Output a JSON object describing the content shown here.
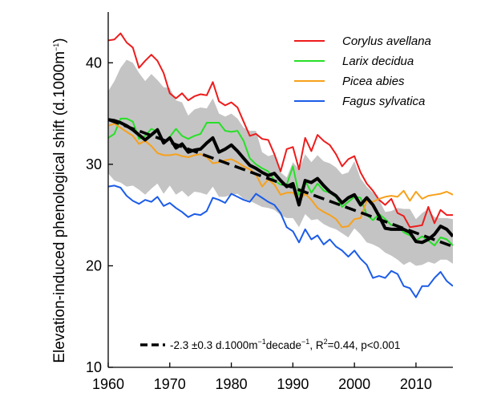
{
  "chart_data": {
    "type": "line",
    "ylabel_main": "Elevation-induced phenological shift (d.1000m",
    "ylabel_sup": "−1",
    "ylabel_close": ")",
    "xlim": [
      1960,
      2016
    ],
    "ylim": [
      10,
      45
    ],
    "xticks": [
      "1960",
      "1970",
      "1980",
      "1990",
      "2000",
      "2010"
    ],
    "yticks": [
      "10",
      "20",
      "30",
      "40"
    ],
    "legend_position": "top-right",
    "colors": {
      "corylus": "#ee1c1c",
      "larix": "#27e027",
      "picea": "#f7a11b",
      "fagus": "#1c5ce8",
      "mean": "#000000",
      "band": "#c4c4c4"
    },
    "x": [
      1960,
      1961,
      1962,
      1963,
      1964,
      1965,
      1966,
      1967,
      1968,
      1969,
      1970,
      1971,
      1972,
      1973,
      1974,
      1975,
      1976,
      1977,
      1978,
      1979,
      1980,
      1981,
      1982,
      1983,
      1984,
      1985,
      1986,
      1987,
      1988,
      1989,
      1990,
      1991,
      1992,
      1993,
      1994,
      1995,
      1996,
      1997,
      1998,
      1999,
      2000,
      2001,
      2002,
      2003,
      2004,
      2005,
      2006,
      2007,
      2008,
      2009,
      2010,
      2011,
      2012,
      2013,
      2014,
      2015,
      2016
    ],
    "series": [
      {
        "name": "Corylus avellana",
        "color_key": "corylus",
        "values": [
          42.2,
          42.3,
          42.9,
          42.0,
          41.5,
          39.5,
          40.2,
          40.8,
          40.2,
          39.0,
          37.0,
          36.5,
          37.0,
          36.3,
          36.7,
          36.9,
          36.8,
          38.1,
          36.2,
          35.8,
          36.1,
          35.6,
          34.2,
          32.8,
          33.0,
          32.5,
          32.4,
          31.0,
          29.3,
          31.5,
          31.7,
          29.5,
          32.6,
          31.3,
          32.9,
          32.3,
          31.9,
          31.0,
          29.8,
          30.5,
          30.8,
          29.2,
          28.1,
          27.4,
          26.5,
          26.0,
          26.6,
          25.2,
          24.9,
          23.8,
          23.9,
          24.0,
          25.8,
          24.2,
          25.5,
          25.0,
          25.0
        ]
      },
      {
        "name": "Larix decidua",
        "color_key": "larix",
        "values": [
          32.6,
          33.0,
          34.5,
          34.5,
          34.2,
          32.5,
          32.8,
          33.5,
          33.2,
          32.0,
          32.7,
          33.5,
          32.8,
          32.5,
          32.8,
          33.0,
          34.1,
          34.1,
          34.1,
          33.3,
          33.2,
          33.3,
          32.3,
          30.6,
          30.0,
          29.6,
          29.3,
          28.4,
          28.0,
          28.0,
          29.8,
          27.0,
          28.4,
          27.2,
          28.1,
          27.4,
          27.2,
          26.8,
          25.8,
          26.3,
          26.8,
          26.7,
          25.0,
          24.5,
          25.1,
          24.6,
          24.0,
          24.0,
          23.3,
          23.0,
          22.5,
          22.9,
          22.5,
          22.0,
          22.8,
          22.6,
          22.0
        ]
      },
      {
        "name": "Picea abies",
        "color_key": "picea",
        "values": [
          33.8,
          34.0,
          33.6,
          33.2,
          32.8,
          32.0,
          32.3,
          31.8,
          31.1,
          30.9,
          30.9,
          31.0,
          30.8,
          30.7,
          30.9,
          31.0,
          30.7,
          30.1,
          30.2,
          30.4,
          30.5,
          30.2,
          29.8,
          29.5,
          29.0,
          27.8,
          28.5,
          28.0,
          27.0,
          27.2,
          27.2,
          26.4,
          27.1,
          26.5,
          25.7,
          25.3,
          25.0,
          24.6,
          23.8,
          23.9,
          24.6,
          24.7,
          26.4,
          26.3,
          26.6,
          26.8,
          26.9,
          26.8,
          27.4,
          26.4,
          27.3,
          26.6,
          26.9,
          27.0,
          27.1,
          27.3,
          27.0
        ]
      },
      {
        "name": "Fagus sylvatica",
        "color_key": "fagus",
        "values": [
          27.8,
          27.9,
          27.7,
          26.9,
          26.4,
          26.1,
          26.5,
          26.3,
          26.8,
          25.9,
          26.2,
          25.7,
          25.3,
          24.8,
          25.1,
          25.0,
          25.4,
          26.7,
          26.5,
          26.2,
          27.1,
          26.8,
          26.5,
          26.3,
          27.1,
          26.7,
          26.3,
          26.0,
          25.2,
          23.8,
          23.4,
          22.3,
          23.6,
          22.6,
          23.0,
          22.1,
          22.6,
          21.9,
          21.5,
          20.9,
          21.5,
          20.7,
          20.1,
          18.8,
          19.0,
          18.8,
          19.5,
          19.2,
          18.0,
          17.8,
          16.9,
          18.0,
          18.0,
          18.8,
          19.4,
          18.5,
          18.0
        ]
      },
      {
        "name": "",
        "color_key": "mean",
        "values": [
          34.4,
          34.3,
          34.1,
          33.8,
          33.4,
          32.9,
          32.4,
          32.9,
          33.4,
          32.1,
          32.6,
          31.6,
          32.0,
          31.2,
          31.4,
          31.5,
          32.1,
          32.6,
          31.2,
          31.5,
          31.9,
          31.3,
          30.6,
          29.9,
          29.6,
          29.2,
          28.9,
          29.1,
          28.4,
          27.8,
          28.1,
          26.0,
          28.4,
          28.2,
          28.6,
          27.9,
          27.3,
          26.9,
          26.2,
          26.7,
          27.0,
          26.0,
          26.7,
          26.0,
          24.9,
          23.7,
          23.6,
          23.6,
          23.6,
          23.3,
          22.4,
          22.3,
          22.6,
          23.1,
          23.9,
          23.6,
          22.9
        ]
      }
    ],
    "band": {
      "upper": [
        37.2,
        38.2,
        39.5,
        40.3,
        40.0,
        39.0,
        38.2,
        38.9,
        38.3,
        37.6,
        37.5,
        36.3,
        36.1,
        34.8,
        35.4,
        35.6,
        35.5,
        36.5,
        35.0,
        34.7,
        35.0,
        34.5,
        33.6,
        33.3,
        33.3,
        31.2,
        30.8,
        31.0,
        29.2,
        28.7,
        30.2,
        29.5,
        31.0,
        30.2,
        30.9,
        30.3,
        30.1,
        29.7,
        29.0,
        29.2,
        30.3,
        28.6,
        27.8,
        27.2,
        26.5,
        25.3,
        25.4,
        25.7,
        25.6,
        25.6,
        24.6,
        25.2,
        25.6,
        24.8,
        24.7,
        24.7,
        24.6
      ],
      "lower": [
        29.1,
        28.4,
        28.2,
        27.8,
        27.9,
        27.5,
        27.0,
        27.6,
        28.1,
        27.1,
        27.9,
        27.0,
        27.4,
        26.8,
        27.3,
        27.2,
        27.0,
        27.8,
        26.8,
        26.8,
        27.0,
        27.1,
        26.6,
        26.4,
        26.1,
        25.8,
        25.7,
        25.5,
        25.0,
        24.7,
        24.7,
        23.8,
        25.1,
        24.5,
        24.6,
        24.1,
        23.8,
        23.6,
        23.2,
        22.8,
        23.7,
        23.1,
        22.3,
        22.1,
        21.8,
        21.3,
        21.0,
        20.6,
        20.1,
        20.4,
        20.0,
        20.1,
        20.4,
        20.2,
        20.6,
        20.6,
        20.2
      ]
    },
    "trend": {
      "x": [
        1960,
        2016
      ],
      "y": [
        34.4,
        21.9
      ],
      "color_key": "mean"
    },
    "annotation": {
      "main": "-2.3 ±0.3 d.1000m",
      "sup1": "−1",
      "mid": "decade",
      "sup2": "−1",
      "mid2": ", R",
      "sup3": "2",
      "tail": "=0.44, p<0.001"
    }
  }
}
